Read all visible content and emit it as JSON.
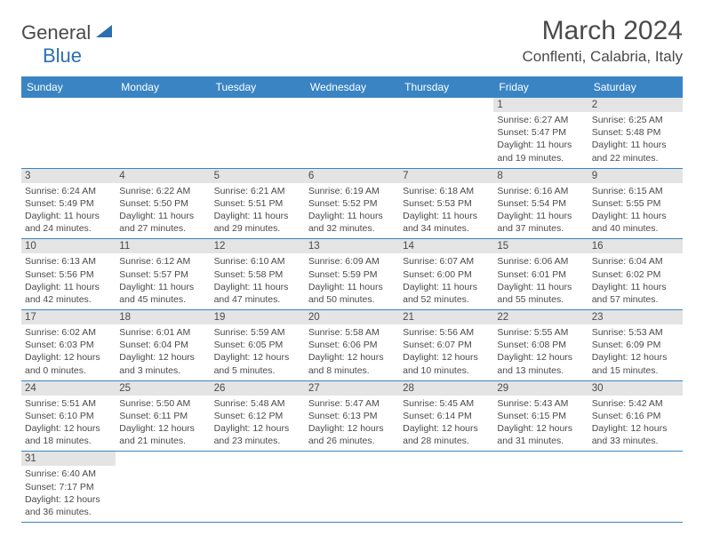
{
  "logo": {
    "general": "General",
    "blue": "Blue"
  },
  "title": "March 2024",
  "location": "Conflenti, Calabria, Italy",
  "colors": {
    "header_bg": "#3a84c4",
    "header_text": "#ffffff",
    "daynum_bg": "#e4e4e4",
    "border": "#3a84c4",
    "text": "#4a4a4a",
    "logo_blue": "#2b6fb0"
  },
  "day_names": [
    "Sunday",
    "Monday",
    "Tuesday",
    "Wednesday",
    "Thursday",
    "Friday",
    "Saturday"
  ],
  "weeks": [
    [
      {
        "n": "",
        "sr": "",
        "ss": "",
        "dl": ""
      },
      {
        "n": "",
        "sr": "",
        "ss": "",
        "dl": ""
      },
      {
        "n": "",
        "sr": "",
        "ss": "",
        "dl": ""
      },
      {
        "n": "",
        "sr": "",
        "ss": "",
        "dl": ""
      },
      {
        "n": "",
        "sr": "",
        "ss": "",
        "dl": ""
      },
      {
        "n": "1",
        "sr": "Sunrise: 6:27 AM",
        "ss": "Sunset: 5:47 PM",
        "dl": "Daylight: 11 hours and 19 minutes."
      },
      {
        "n": "2",
        "sr": "Sunrise: 6:25 AM",
        "ss": "Sunset: 5:48 PM",
        "dl": "Daylight: 11 hours and 22 minutes."
      }
    ],
    [
      {
        "n": "3",
        "sr": "Sunrise: 6:24 AM",
        "ss": "Sunset: 5:49 PM",
        "dl": "Daylight: 11 hours and 24 minutes."
      },
      {
        "n": "4",
        "sr": "Sunrise: 6:22 AM",
        "ss": "Sunset: 5:50 PM",
        "dl": "Daylight: 11 hours and 27 minutes."
      },
      {
        "n": "5",
        "sr": "Sunrise: 6:21 AM",
        "ss": "Sunset: 5:51 PM",
        "dl": "Daylight: 11 hours and 29 minutes."
      },
      {
        "n": "6",
        "sr": "Sunrise: 6:19 AM",
        "ss": "Sunset: 5:52 PM",
        "dl": "Daylight: 11 hours and 32 minutes."
      },
      {
        "n": "7",
        "sr": "Sunrise: 6:18 AM",
        "ss": "Sunset: 5:53 PM",
        "dl": "Daylight: 11 hours and 34 minutes."
      },
      {
        "n": "8",
        "sr": "Sunrise: 6:16 AM",
        "ss": "Sunset: 5:54 PM",
        "dl": "Daylight: 11 hours and 37 minutes."
      },
      {
        "n": "9",
        "sr": "Sunrise: 6:15 AM",
        "ss": "Sunset: 5:55 PM",
        "dl": "Daylight: 11 hours and 40 minutes."
      }
    ],
    [
      {
        "n": "10",
        "sr": "Sunrise: 6:13 AM",
        "ss": "Sunset: 5:56 PM",
        "dl": "Daylight: 11 hours and 42 minutes."
      },
      {
        "n": "11",
        "sr": "Sunrise: 6:12 AM",
        "ss": "Sunset: 5:57 PM",
        "dl": "Daylight: 11 hours and 45 minutes."
      },
      {
        "n": "12",
        "sr": "Sunrise: 6:10 AM",
        "ss": "Sunset: 5:58 PM",
        "dl": "Daylight: 11 hours and 47 minutes."
      },
      {
        "n": "13",
        "sr": "Sunrise: 6:09 AM",
        "ss": "Sunset: 5:59 PM",
        "dl": "Daylight: 11 hours and 50 minutes."
      },
      {
        "n": "14",
        "sr": "Sunrise: 6:07 AM",
        "ss": "Sunset: 6:00 PM",
        "dl": "Daylight: 11 hours and 52 minutes."
      },
      {
        "n": "15",
        "sr": "Sunrise: 6:06 AM",
        "ss": "Sunset: 6:01 PM",
        "dl": "Daylight: 11 hours and 55 minutes."
      },
      {
        "n": "16",
        "sr": "Sunrise: 6:04 AM",
        "ss": "Sunset: 6:02 PM",
        "dl": "Daylight: 11 hours and 57 minutes."
      }
    ],
    [
      {
        "n": "17",
        "sr": "Sunrise: 6:02 AM",
        "ss": "Sunset: 6:03 PM",
        "dl": "Daylight: 12 hours and 0 minutes."
      },
      {
        "n": "18",
        "sr": "Sunrise: 6:01 AM",
        "ss": "Sunset: 6:04 PM",
        "dl": "Daylight: 12 hours and 3 minutes."
      },
      {
        "n": "19",
        "sr": "Sunrise: 5:59 AM",
        "ss": "Sunset: 6:05 PM",
        "dl": "Daylight: 12 hours and 5 minutes."
      },
      {
        "n": "20",
        "sr": "Sunrise: 5:58 AM",
        "ss": "Sunset: 6:06 PM",
        "dl": "Daylight: 12 hours and 8 minutes."
      },
      {
        "n": "21",
        "sr": "Sunrise: 5:56 AM",
        "ss": "Sunset: 6:07 PM",
        "dl": "Daylight: 12 hours and 10 minutes."
      },
      {
        "n": "22",
        "sr": "Sunrise: 5:55 AM",
        "ss": "Sunset: 6:08 PM",
        "dl": "Daylight: 12 hours and 13 minutes."
      },
      {
        "n": "23",
        "sr": "Sunrise: 5:53 AM",
        "ss": "Sunset: 6:09 PM",
        "dl": "Daylight: 12 hours and 15 minutes."
      }
    ],
    [
      {
        "n": "24",
        "sr": "Sunrise: 5:51 AM",
        "ss": "Sunset: 6:10 PM",
        "dl": "Daylight: 12 hours and 18 minutes."
      },
      {
        "n": "25",
        "sr": "Sunrise: 5:50 AM",
        "ss": "Sunset: 6:11 PM",
        "dl": "Daylight: 12 hours and 21 minutes."
      },
      {
        "n": "26",
        "sr": "Sunrise: 5:48 AM",
        "ss": "Sunset: 6:12 PM",
        "dl": "Daylight: 12 hours and 23 minutes."
      },
      {
        "n": "27",
        "sr": "Sunrise: 5:47 AM",
        "ss": "Sunset: 6:13 PM",
        "dl": "Daylight: 12 hours and 26 minutes."
      },
      {
        "n": "28",
        "sr": "Sunrise: 5:45 AM",
        "ss": "Sunset: 6:14 PM",
        "dl": "Daylight: 12 hours and 28 minutes."
      },
      {
        "n": "29",
        "sr": "Sunrise: 5:43 AM",
        "ss": "Sunset: 6:15 PM",
        "dl": "Daylight: 12 hours and 31 minutes."
      },
      {
        "n": "30",
        "sr": "Sunrise: 5:42 AM",
        "ss": "Sunset: 6:16 PM",
        "dl": "Daylight: 12 hours and 33 minutes."
      }
    ],
    [
      {
        "n": "31",
        "sr": "Sunrise: 6:40 AM",
        "ss": "Sunset: 7:17 PM",
        "dl": "Daylight: 12 hours and 36 minutes."
      },
      {
        "n": "",
        "sr": "",
        "ss": "",
        "dl": ""
      },
      {
        "n": "",
        "sr": "",
        "ss": "",
        "dl": ""
      },
      {
        "n": "",
        "sr": "",
        "ss": "",
        "dl": ""
      },
      {
        "n": "",
        "sr": "",
        "ss": "",
        "dl": ""
      },
      {
        "n": "",
        "sr": "",
        "ss": "",
        "dl": ""
      },
      {
        "n": "",
        "sr": "",
        "ss": "",
        "dl": ""
      }
    ]
  ]
}
